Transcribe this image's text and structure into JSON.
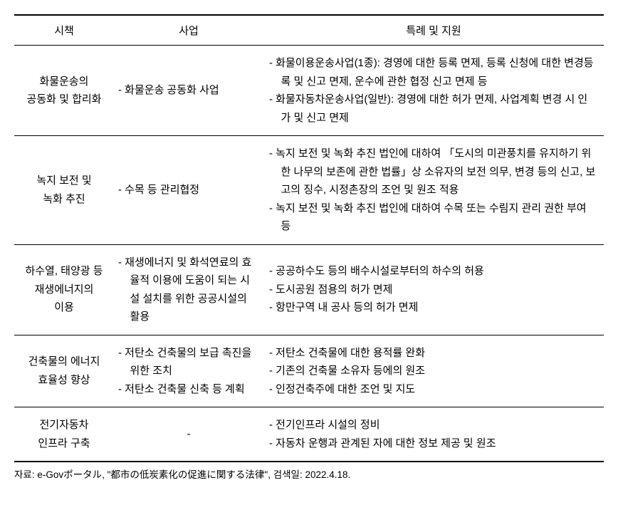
{
  "table": {
    "headers": {
      "policy": "시책",
      "project": "사업",
      "support": "특례 및 지원"
    },
    "rows": [
      {
        "policy": "화물운송의\n공동화 및 합리화",
        "project": "- 화물운송 공동화 사업",
        "support": "- 화물이용운송사업(1종): 경영에 대한 등록 면제, 등록 신청에 대한 변경등록 및 신고 면제, 운수에 관한 협정 신고 면제 등\n- 화물자동차운송사업(일반): 경영에 대한 허가 면제, 사업계획 변경 시 인가 및 신고 면제"
      },
      {
        "policy": "녹지 보전 및\n녹화 추진",
        "project": "- 수목 등 관리협정",
        "support": "- 녹지 보전 및 녹화 추진 법인에 대하여 「도시의 미관풍치를 유지하기 위한 나무의 보존에 관한 법률」상 소유자의 보전 의무, 변경 등의 신고, 보고의 징수, 시정촌장의 조언 및 원조 적용\n- 녹지 보전 및 녹화 추진 법인에 대하여 수목 또는 수림지 관리 권한 부여 등"
      },
      {
        "policy": "하수열, 태양광 등\n재생에너지의\n이용",
        "project": "- 재생에너지 및 화석연료의 효율적 이용에 도움이 되는 시설 설치를 위한 공공시설의 활용",
        "support": "- 공공하수도 등의 배수시설로부터의 하수의 허용\n- 도시공원 점용의 허가 면제\n- 항만구역 내 공사 등의 허가 면제"
      },
      {
        "policy": "건축물의 에너지\n효율성 향상",
        "project": "- 저탄소 건축물의 보급 촉진을 위한 조치\n- 저탄소 건축물 신축 등 계획",
        "support": "- 저탄소 건축물에 대한 용적률 완화\n- 기존의 건축물 소유자 등에의 원조\n- 인정건축주에 대한 조언 및 지도"
      },
      {
        "policy": "전기자동차\n인프라 구축",
        "project": "-",
        "support": "- 전기인프라 시설의 정비\n- 자동차 운행과 관계된 자에 대한 정보 제공 및 원조"
      }
    ]
  },
  "footer": "자료: e-Govポータル, \"都市の低炭素化の促進に関する法律\", 검색일: 2022.4.18."
}
